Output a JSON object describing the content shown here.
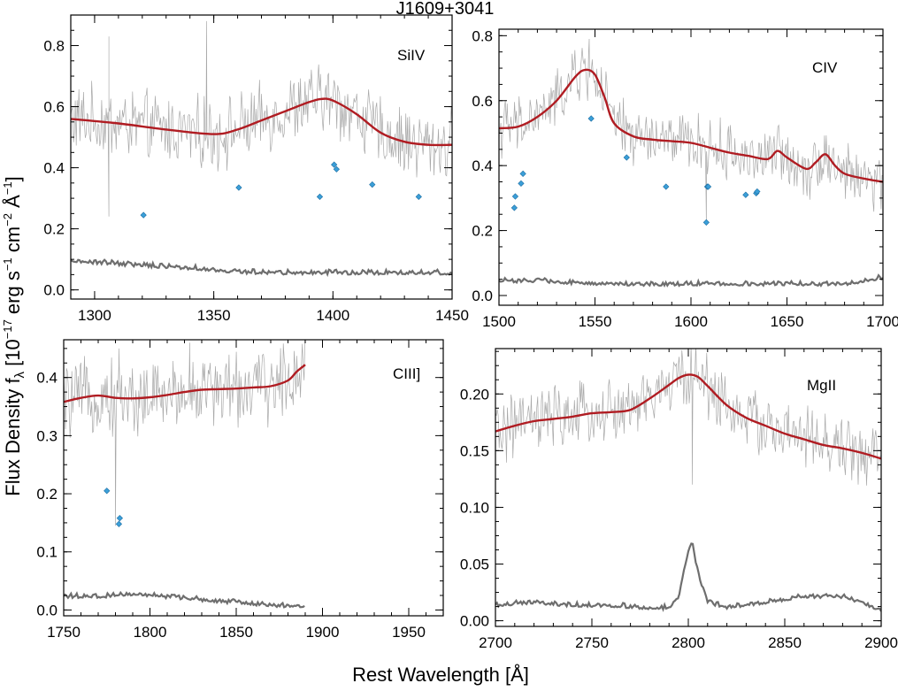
{
  "title": "J1609+3041",
  "ylabel_main": "Flux Density f",
  "ylabel_sub": "λ",
  "ylabel_units": " [10",
  "ylabel_exp": "−17",
  "ylabel_units2": " erg s",
  "ylabel_exp2": "−1",
  "ylabel_units3": " cm",
  "ylabel_exp3": "−2",
  "ylabel_units4": " Å",
  "ylabel_exp4": "−1",
  "ylabel_units5": "]",
  "xlabel": "Rest Wavelength [Å]",
  "colors": {
    "flux": "#a9a9a9",
    "error": "#6e6e6e",
    "model": "#b01c22",
    "absorbers": "#3b9fd8"
  },
  "chart_data": [
    {
      "type": "line",
      "panel": "SiIV",
      "label": "SiIV",
      "xlim": [
        1290,
        1450
      ],
      "ylim": [
        -0.03,
        0.9
      ],
      "xticks": [
        1300,
        1350,
        1400,
        1450
      ],
      "yticks": [
        0.0,
        0.2,
        0.4,
        0.6,
        0.8
      ],
      "ytick_labels": [
        "0.0",
        "0.2",
        "0.4",
        "0.6",
        "0.8"
      ],
      "model": {
        "x": [
          1290,
          1310,
          1330,
          1350,
          1360,
          1370,
          1380,
          1390,
          1395,
          1400,
          1410,
          1420,
          1430,
          1440,
          1450
        ],
        "y": [
          0.56,
          0.545,
          0.525,
          0.51,
          0.525,
          0.555,
          0.585,
          0.615,
          0.625,
          0.62,
          0.575,
          0.515,
          0.485,
          0.475,
          0.475
        ]
      },
      "flux_noise": 0.09,
      "flux_spikes": [
        [
          1306,
          0.83
        ],
        [
          1347,
          0.88
        ],
        [
          1306,
          0.24
        ]
      ],
      "error": {
        "x": [
          1290,
          1300,
          1310,
          1320,
          1330,
          1340,
          1350,
          1360,
          1370,
          1380,
          1390,
          1400,
          1410,
          1420,
          1430,
          1440,
          1450
        ],
        "y": [
          0.09,
          0.085,
          0.08,
          0.075,
          0.07,
          0.065,
          0.06,
          0.055,
          0.05,
          0.05,
          0.05,
          0.05,
          0.05,
          0.05,
          0.05,
          0.05,
          0.05
        ]
      },
      "absorbers": {
        "x": [
          1320.5,
          1360.5,
          1394.5,
          1400.5,
          1401.5,
          1416.5,
          1436.0
        ],
        "y": [
          0.245,
          0.335,
          0.305,
          0.41,
          0.395,
          0.345,
          0.305
        ]
      }
    },
    {
      "type": "line",
      "panel": "CIV",
      "label": "CIV",
      "xlim": [
        1500,
        1700
      ],
      "ylim": [
        -0.03,
        0.82
      ],
      "xticks": [
        1500,
        1550,
        1600,
        1650,
        1700
      ],
      "yticks": [
        0.0,
        0.2,
        0.4,
        0.6,
        0.8
      ],
      "ytick_labels": [
        "0.0",
        "0.2",
        "0.4",
        "0.6",
        "0.8"
      ],
      "model": {
        "x": [
          1500,
          1510,
          1520,
          1530,
          1540,
          1545,
          1550,
          1555,
          1560,
          1570,
          1580,
          1590,
          1600,
          1610,
          1620,
          1630,
          1640,
          1645,
          1650,
          1660,
          1665,
          1670,
          1675,
          1680,
          1690,
          1700
        ],
        "y": [
          0.515,
          0.52,
          0.55,
          0.6,
          0.675,
          0.695,
          0.68,
          0.61,
          0.53,
          0.49,
          0.48,
          0.475,
          0.47,
          0.455,
          0.44,
          0.43,
          0.42,
          0.445,
          0.425,
          0.39,
          0.41,
          0.435,
          0.4,
          0.375,
          0.36,
          0.35
        ]
      },
      "flux_noise": 0.07,
      "flux_spikes": [
        [
          1547,
          0.79
        ],
        [
          1608,
          0.22
        ]
      ],
      "error": {
        "x": [
          1500,
          1520,
          1540,
          1560,
          1580,
          1600,
          1620,
          1640,
          1660,
          1680,
          1700
        ],
        "y": [
          0.04,
          0.04,
          0.035,
          0.03,
          0.03,
          0.03,
          0.03,
          0.03,
          0.03,
          0.03,
          0.05
        ]
      },
      "absorbers": {
        "x": [
          1508.0,
          1508.5,
          1511.5,
          1512.5,
          1548.0,
          1566.5,
          1587.0,
          1608.0,
          1608.5,
          1609.0,
          1628.5,
          1634.0,
          1634.5
        ],
        "y": [
          0.27,
          0.305,
          0.345,
          0.375,
          0.545,
          0.425,
          0.335,
          0.225,
          0.335,
          0.335,
          0.31,
          0.315,
          0.32
        ]
      }
    },
    {
      "type": "line",
      "panel": "CIII]",
      "label": "CIII]",
      "xlim": [
        1750,
        1970
      ],
      "ylim": [
        -0.01,
        0.465
      ],
      "xticks": [
        1750,
        1800,
        1850,
        1900,
        1950
      ],
      "yticks": [
        0.0,
        0.1,
        0.2,
        0.3,
        0.4
      ],
      "ytick_labels": [
        "0.0",
        "0.1",
        "0.2",
        "0.3",
        "0.4"
      ],
      "model": {
        "x": [
          1750,
          1760,
          1770,
          1780,
          1790,
          1800,
          1810,
          1820,
          1830,
          1840,
          1850,
          1860,
          1870,
          1880,
          1885,
          1890
        ],
        "y": [
          0.358,
          0.365,
          0.369,
          0.365,
          0.364,
          0.366,
          0.37,
          0.375,
          0.379,
          0.38,
          0.381,
          0.383,
          0.385,
          0.395,
          0.41,
          0.422
        ]
      },
      "flux_noise": 0.05,
      "flux_spikes": [
        [
          1780,
          0.145
        ],
        [
          1782,
          0.45
        ],
        [
          1823,
          0.46
        ]
      ],
      "error": {
        "x": [
          1750,
          1770,
          1790,
          1810,
          1830,
          1850,
          1870,
          1890
        ],
        "y": [
          0.02,
          0.02,
          0.025,
          0.02,
          0.015,
          0.01,
          0.005,
          0.003
        ]
      },
      "absorbers": {
        "x": [
          1775.0,
          1782.0,
          1782.5
        ],
        "y": [
          0.205,
          0.148,
          0.158
        ]
      }
    },
    {
      "type": "line",
      "panel": "MgII",
      "label": "MgII",
      "xlim": [
        2700,
        2900
      ],
      "ylim": [
        -0.005,
        0.24
      ],
      "xticks": [
        2700,
        2750,
        2800,
        2850,
        2900
      ],
      "yticks": [
        0.0,
        0.05,
        0.1,
        0.15,
        0.2
      ],
      "ytick_labels": [
        "0.00",
        "0.05",
        "0.10",
        "0.15",
        "0.20"
      ],
      "model": {
        "x": [
          2700,
          2710,
          2720,
          2730,
          2740,
          2750,
          2760,
          2770,
          2780,
          2790,
          2795,
          2800,
          2805,
          2810,
          2820,
          2830,
          2840,
          2850,
          2860,
          2870,
          2880,
          2890,
          2900
        ],
        "y": [
          0.167,
          0.172,
          0.176,
          0.178,
          0.18,
          0.183,
          0.184,
          0.186,
          0.196,
          0.208,
          0.214,
          0.217,
          0.215,
          0.207,
          0.19,
          0.179,
          0.172,
          0.165,
          0.16,
          0.155,
          0.152,
          0.148,
          0.143
        ]
      },
      "flux_noise": 0.022,
      "flux_spikes": [
        [
          2802,
          0.12
        ],
        [
          2804,
          0.24
        ]
      ],
      "error": {
        "x": [
          2700,
          2720,
          2740,
          2760,
          2780,
          2790,
          2795,
          2800,
          2802,
          2805,
          2810,
          2820,
          2840,
          2860,
          2880,
          2900
        ],
        "y": [
          0.012,
          0.015,
          0.012,
          0.012,
          0.01,
          0.01,
          0.02,
          0.06,
          0.068,
          0.04,
          0.015,
          0.01,
          0.015,
          0.02,
          0.02,
          0.008
        ]
      },
      "absorbers": {
        "x": [],
        "y": []
      }
    }
  ]
}
